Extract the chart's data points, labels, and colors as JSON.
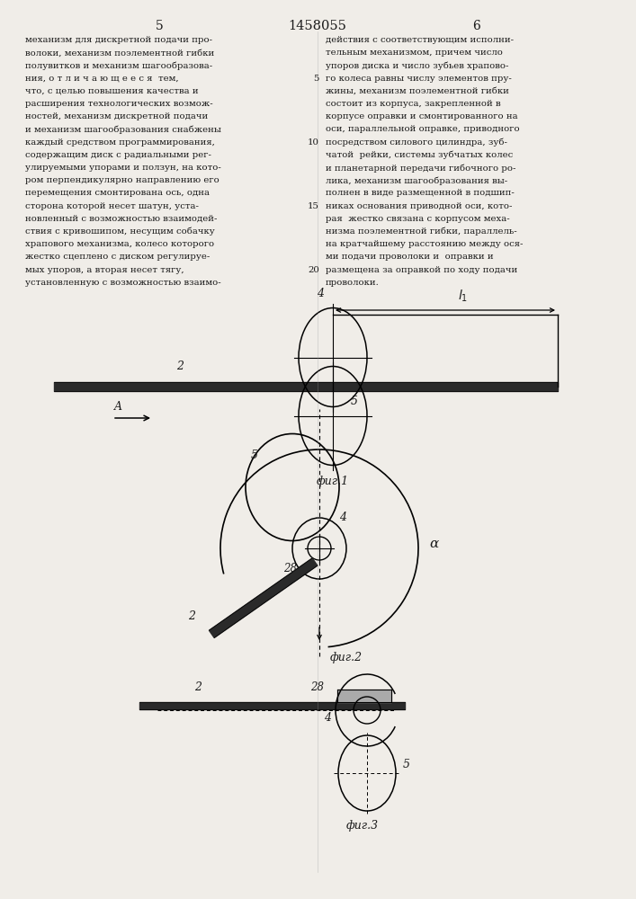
{
  "title": "1458055",
  "page_numbers": [
    "5",
    "6"
  ],
  "background_color": "#f0ede8",
  "text_color": "#1a1a1a",
  "col1_text": "механизм для дискретной подачи про-\nволоки, механизм поэлементной гибки\nполувитков и механизм шагообразова-\nния, о т л и ч а ю щ е е с я  тем,\nчто, с целью повышения качества и\nрасширения технологических возмож-\nностей, механизм дискретной подачи\nи механизм шагообразования снабжены\nкаждый средством программирования,\nсодержащим диск с радиальными рег-\nулируемыми упорами и ползун, на кото-\nром перпендикулярно направлению его\nперемещения смонтирована ось, одна\nсторона которой несет шатун, уста-\nновленный с возможностью взаимодей-\nствия с кривошипом, несущим собачку\nхрапового механизма, колесо которого\nжестко сцеплено с диском регулируе-\nмых упоров, а вторая несет тягу,\nустановленную с возможностью взаимо-",
  "col2_text": "действия с соответствующим исполни-\nтельным механизмом, причем число\nупоров диска и число зубьев храпово-\nго колеса равны числу элементов пру-\nжины, механизм поэлементной гибки\nсостоит из корпуса, закрепленной в\nкорпусе оправки и смонтированного на\nоси, параллельной оправке, приводного\nпосредством силового цилиндра, зуб-\nчатой  рейки, системы зубчатых колес\nи планетарной передачи гибочного ро-\nлика, механизм шагообразования вы-\nполнен в виде размещенной в подшип-\nниках основания приводной оси, кото-\nрая  жестко связана с корпусом меха-\nнизма поэлементной гибки, параллель-\nна кратчайшему расстоянию между ося-\nми подачи проволоки и  оправки и\nразмещена за оправкой по ходу подачи\nпроволоки.",
  "line_num_rows": [
    3,
    8,
    13,
    18
  ],
  "line_num_vals": [
    "5",
    "10",
    "15",
    "20"
  ],
  "fig1_label": "фиг.1",
  "fig2_label": "фиг.2",
  "fig3_label": "фиг.3",
  "dim_label": "l1"
}
